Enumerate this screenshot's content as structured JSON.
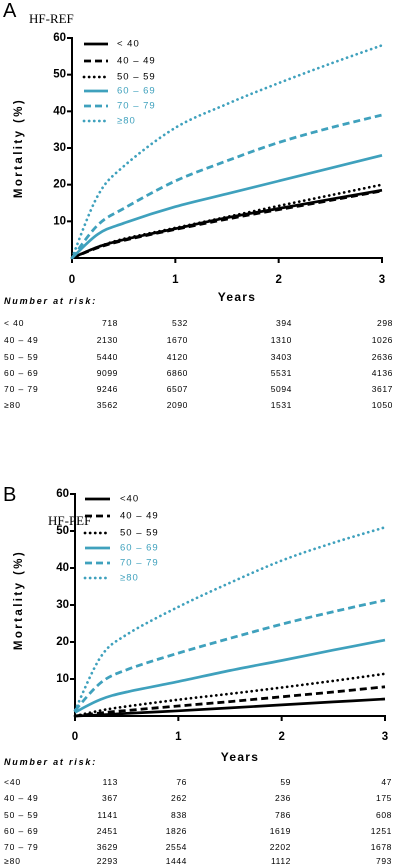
{
  "chart_data": [
    {
      "type": "line",
      "panel_label": "A",
      "title": "HF-REF",
      "xlabel": "Years",
      "ylabel": "Mortality (%)",
      "xlim": [
        0,
        3
      ],
      "ylim": [
        0,
        60
      ],
      "xticks": [
        0,
        1,
        2,
        3
      ],
      "yticks": [
        10,
        20,
        30,
        40,
        50,
        60
      ],
      "grid": false,
      "legend_position": "top-left",
      "x": [
        0,
        0.25,
        0.5,
        1,
        1.5,
        2,
        2.5,
        3
      ],
      "series": [
        {
          "name": "< 40",
          "color": "#000000",
          "line_style": "solid",
          "values": [
            0,
            3,
            5,
            8,
            11,
            13.5,
            16,
            18.5
          ]
        },
        {
          "name": "40 – 49",
          "color": "#000000",
          "line_style": "dashed",
          "values": [
            0,
            2.8,
            4.8,
            7.8,
            10.6,
            13.2,
            15.7,
            18.3
          ]
        },
        {
          "name": "50 – 59",
          "color": "#000000",
          "line_style": "dotted",
          "values": [
            0,
            3,
            5.2,
            8.2,
            11.2,
            14.2,
            17.1,
            20
          ]
        },
        {
          "name": "60 – 69",
          "color": "#3fa1bd",
          "line_style": "solid",
          "values": [
            0,
            6.5,
            9.5,
            14,
            17.5,
            21,
            24.5,
            28
          ]
        },
        {
          "name": "70 – 79",
          "color": "#3fa1bd",
          "line_style": "dashed",
          "values": [
            0,
            9,
            13.5,
            21,
            26.5,
            31.5,
            35.5,
            39
          ]
        },
        {
          "name": "≥80",
          "color": "#3fa1bd",
          "line_style": "dotted",
          "values": [
            0,
            17,
            25,
            35.5,
            42,
            47.7,
            53,
            58
          ]
        }
      ],
      "risk_table": {
        "heading": "Number at risk:",
        "rows": [
          {
            "label": "< 40",
            "values": [
              718,
              532,
              394,
              298
            ]
          },
          {
            "label": "40 – 49",
            "values": [
              2130,
              1670,
              1310,
              1026
            ]
          },
          {
            "label": "50 – 59",
            "values": [
              5440,
              4120,
              3403,
              2636
            ]
          },
          {
            "label": "60 – 69",
            "values": [
              9099,
              6860,
              5531,
              4136
            ]
          },
          {
            "label": "70 – 79",
            "values": [
              9246,
              6507,
              5094,
              3617
            ]
          },
          {
            "label": "≥80",
            "values": [
              3562,
              2090,
              1531,
              1050
            ]
          }
        ]
      }
    },
    {
      "type": "line",
      "panel_label": "B",
      "title": "HF-PEF",
      "xlabel": "Years",
      "ylabel": "Mortality (%)",
      "xlim": [
        0,
        3
      ],
      "ylim": [
        0,
        60
      ],
      "xticks": [
        0,
        1,
        2,
        3
      ],
      "yticks": [
        10,
        20,
        30,
        40,
        50,
        60
      ],
      "grid": false,
      "legend_position": "top-left",
      "x": [
        0,
        0.25,
        0.5,
        1,
        1.5,
        2,
        2.5,
        3
      ],
      "series": [
        {
          "name": "<40",
          "color": "#000000",
          "line_style": "solid",
          "values": [
            0,
            0.3,
            0.7,
            1.4,
            2.2,
            3,
            3.8,
            4.6
          ]
        },
        {
          "name": "40 – 49",
          "color": "#000000",
          "line_style": "dashed",
          "values": [
            0,
            0.8,
            1.5,
            2.7,
            3.9,
            5.2,
            6.5,
            7.9
          ]
        },
        {
          "name": "50 – 59",
          "color": "#000000",
          "line_style": "dotted",
          "values": [
            0,
            1.5,
            2.6,
            4.4,
            6,
            7.7,
            9.5,
            11.4
          ]
        },
        {
          "name": "60 – 69",
          "color": "#3fa1bd",
          "line_style": "solid",
          "values": [
            1,
            4.5,
            6.5,
            9.3,
            12.3,
            15,
            17.8,
            20.5
          ]
        },
        {
          "name": "70 – 79",
          "color": "#3fa1bd",
          "line_style": "dashed",
          "values": [
            1.5,
            9,
            12.5,
            17,
            21,
            24.8,
            28.2,
            31.3
          ]
        },
        {
          "name": "≥80",
          "color": "#3fa1bd",
          "line_style": "dotted",
          "values": [
            1.5,
            16,
            22,
            29.5,
            36,
            42,
            46.8,
            51
          ]
        }
      ],
      "risk_table": {
        "heading": "Number at risk:",
        "rows": [
          {
            "label": "<40",
            "values": [
              113,
              76,
              59,
              47
            ]
          },
          {
            "label": "40 – 49",
            "values": [
              367,
              262,
              236,
              175
            ]
          },
          {
            "label": "50 – 59",
            "values": [
              1141,
              838,
              786,
              608
            ]
          },
          {
            "label": "60 – 69",
            "values": [
              2451,
              1826,
              1619,
              1251
            ]
          },
          {
            "label": "70 – 79",
            "values": [
              3629,
              2554,
              2202,
              1678
            ]
          },
          {
            "label": "≥80",
            "values": [
              2293,
              1444,
              1112,
              793
            ]
          }
        ]
      }
    }
  ]
}
